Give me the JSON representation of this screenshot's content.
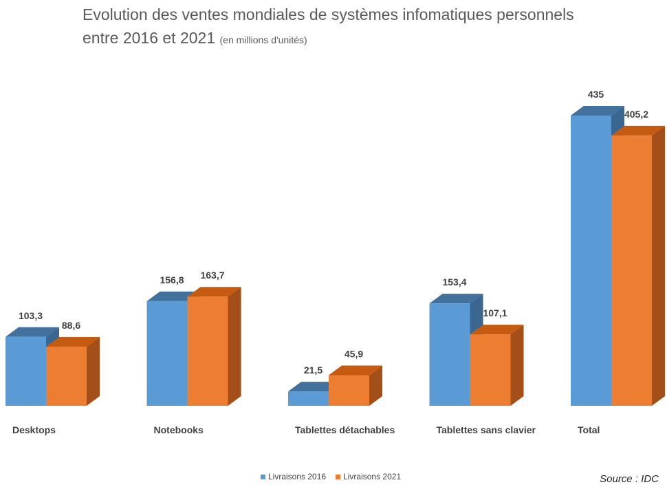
{
  "title": {
    "line1": "Evolution des ventes mondiales de systèmes infomatiques  personnels",
    "line2": "entre 2016 et 2021",
    "unit": "(en millions d'unités)"
  },
  "source": "Source : IDC",
  "colors": {
    "series_2016": "#5b9bd5",
    "series_2016_top": "#41719c",
    "series_2016_side": "#3a6690",
    "series_2021": "#ed7d31",
    "series_2021_top": "#c55a11",
    "series_2021_side": "#a44f19"
  },
  "chart_data": {
    "type": "bar",
    "style": "3d-clustered-column",
    "categories": [
      "Desktops",
      "Notebooks",
      "Tablettes détachables",
      "Tablettes sans clavier",
      "Total"
    ],
    "series": [
      {
        "name": "Livraisons 2016",
        "values": [
          103.3,
          156.8,
          21.5,
          153.4,
          435
        ]
      },
      {
        "name": "Livraisons 2021",
        "values": [
          88.6,
          163.7,
          45.9,
          107.1,
          405.2
        ]
      }
    ],
    "data_labels": [
      [
        "103,3",
        "156,8",
        "21,5",
        "153,4",
        "435"
      ],
      [
        "88,6",
        "163,7",
        "45,9",
        "107,1",
        "405,2"
      ]
    ],
    "ylim": [
      0,
      435
    ],
    "grid": false,
    "legend_position": "bottom"
  }
}
